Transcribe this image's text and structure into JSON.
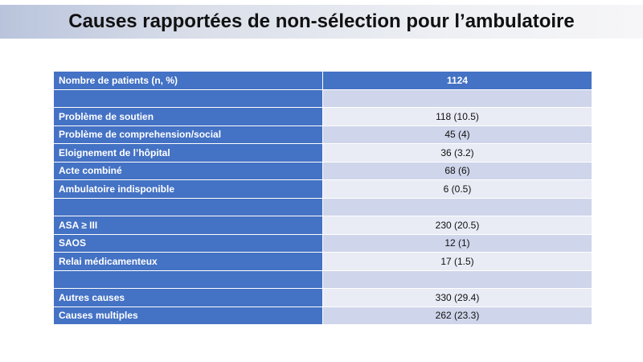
{
  "title": "Causes rapportées de non-sélection pour l’ambulatoire",
  "table": {
    "header": {
      "label": "Nombre de patients (n, %)",
      "value": "1124"
    },
    "rows": [
      {
        "label": "",
        "value": ""
      },
      {
        "label": "Problème de soutien",
        "value": "118 (10.5)"
      },
      {
        "label": "Problème de comprehension/social",
        "value": "45 (4)"
      },
      {
        "label": "Eloignement de l’hôpital",
        "value": "36 (3.2)"
      },
      {
        "label": "Acte combiné",
        "value": "68 (6)"
      },
      {
        "label": "Ambulatoire indisponible",
        "value": "6 (0.5)"
      },
      {
        "label": "",
        "value": ""
      },
      {
        "label": "ASA ≥ III",
        "value": "230 (20.5)"
      },
      {
        "label": "SAOS",
        "value": "12 (1)"
      },
      {
        "label": "Relai médicamenteux",
        "value": "17 (1.5)"
      },
      {
        "label": "",
        "value": ""
      },
      {
        "label": "Autres causes",
        "value": "330 (29.4)"
      },
      {
        "label": "Causes multiples",
        "value": "262 (23.3)"
      }
    ]
  },
  "colors": {
    "header_blue": "#4472c4",
    "row_dark": "#cfd5ea",
    "row_light": "#e9ebf5"
  }
}
